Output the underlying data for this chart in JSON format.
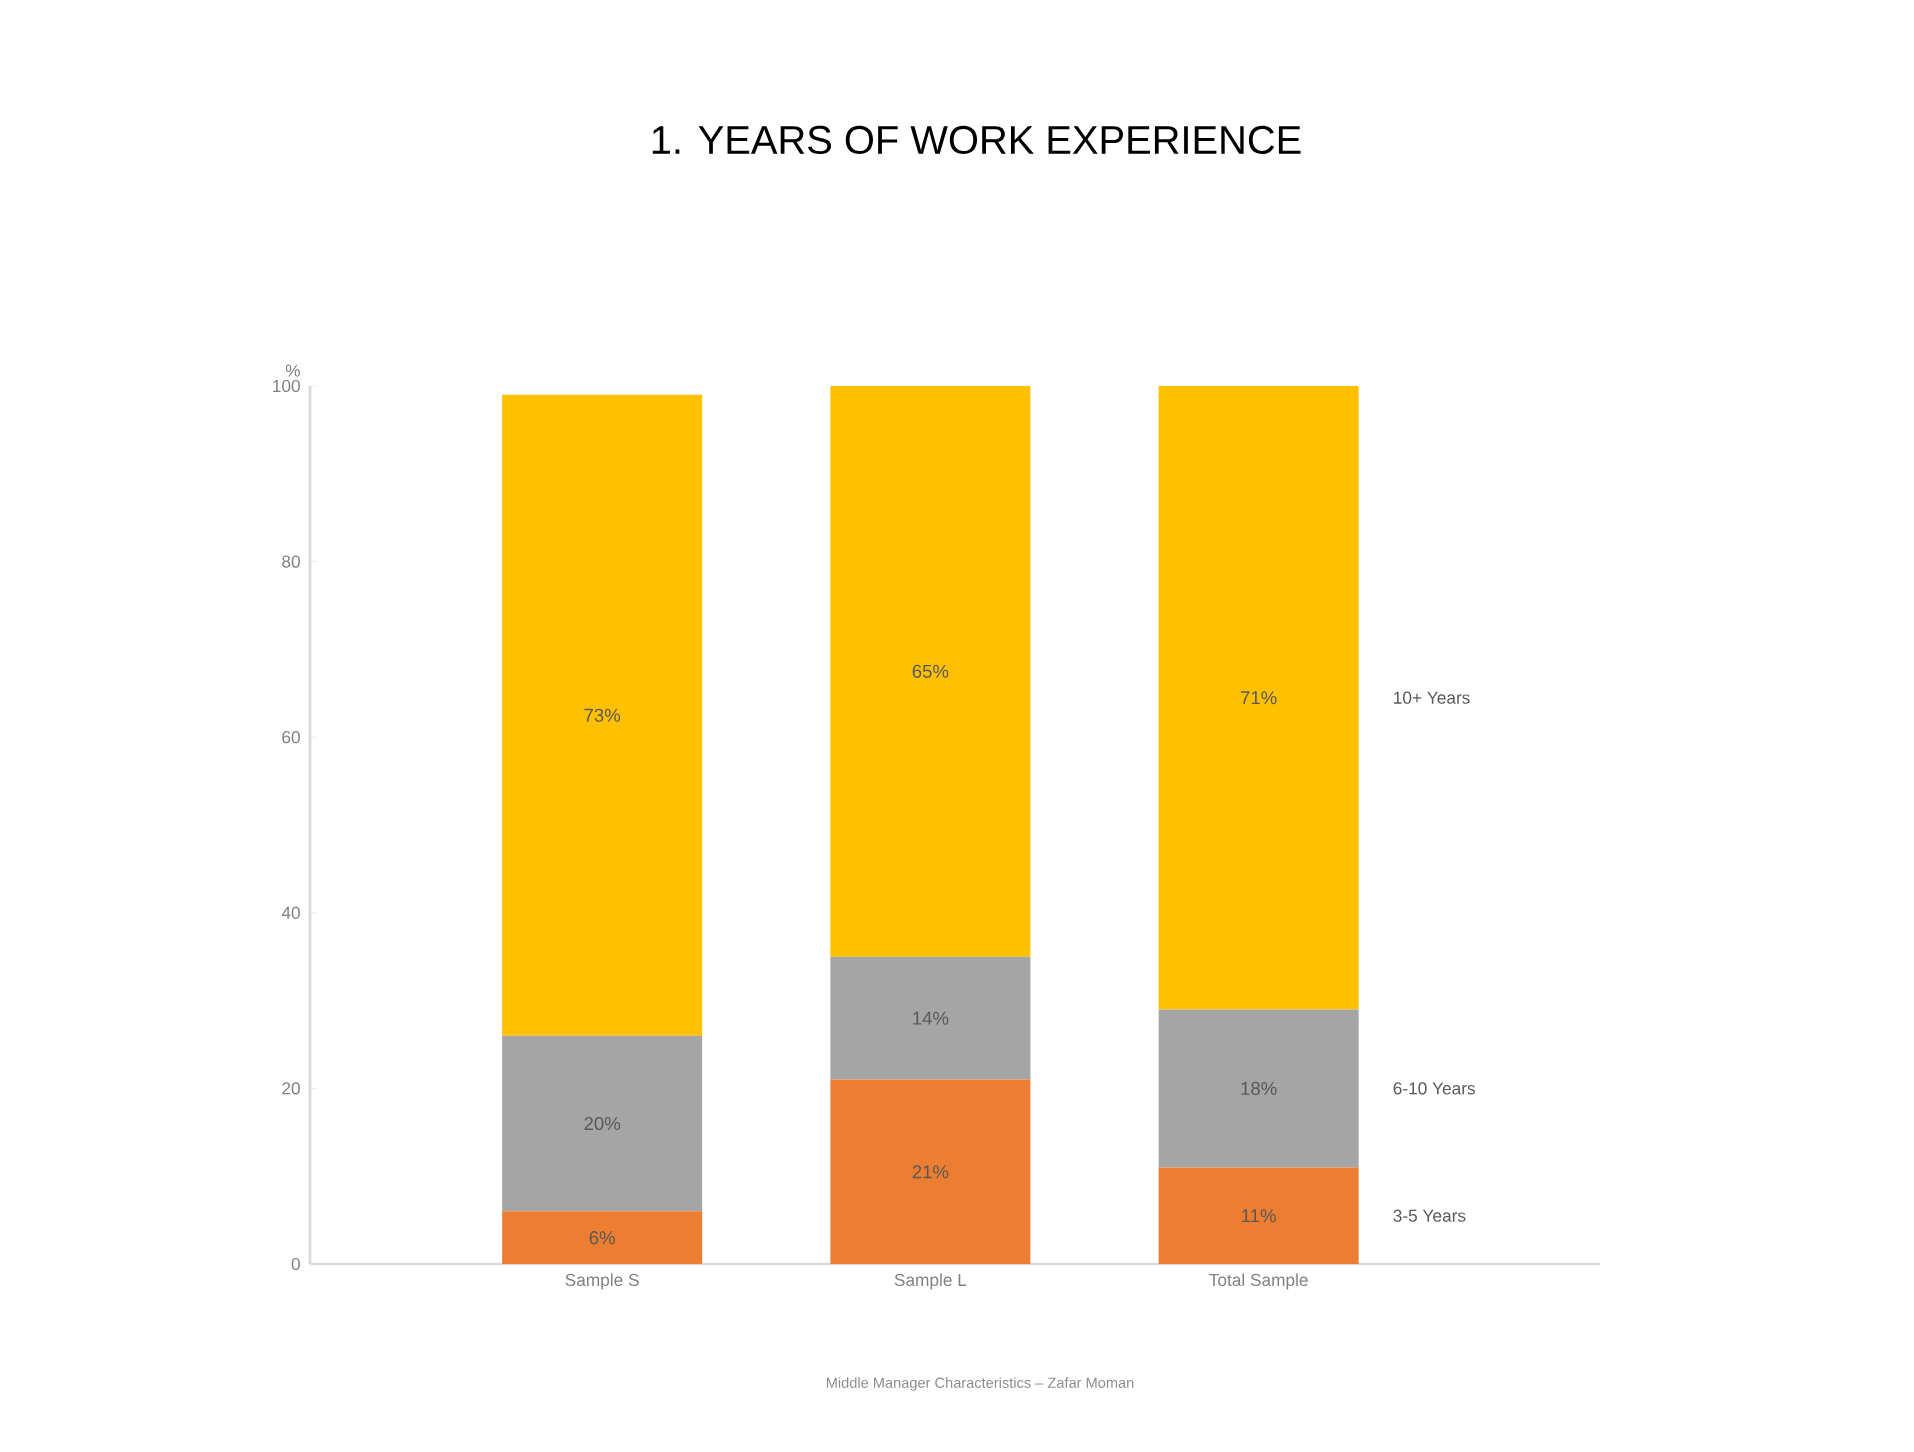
{
  "chart_data": {
    "type": "bar",
    "stacked": true,
    "title": "1. YEARS  OF WORK EXPERIENCE",
    "ylabel": "%",
    "categories": [
      "Sample  S",
      "Sample  L",
      "Total Sample"
    ],
    "series": [
      {
        "name": "3-5 Years",
        "color": "#ed7d31",
        "values": [
          6,
          21,
          11
        ],
        "value_labels": [
          "6%",
          "21%",
          "11%"
        ]
      },
      {
        "name": "6-10 Years",
        "color": "#a5a5a5",
        "values": [
          20,
          14,
          18
        ],
        "value_labels": [
          "20%",
          "14%",
          "18%"
        ]
      },
      {
        "name": "10+ Years",
        "color": "#ffc000",
        "values": [
          73,
          65,
          71
        ],
        "value_labels": [
          "73%",
          "65%",
          "71%"
        ]
      }
    ],
    "ylim": [
      0,
      100
    ],
    "yticks": [
      0,
      20,
      40,
      60,
      80,
      100
    ],
    "grid": false,
    "legend": false,
    "annotations": [
      "Middle  Manager  Characteristics  – Zafar  Moman"
    ]
  }
}
